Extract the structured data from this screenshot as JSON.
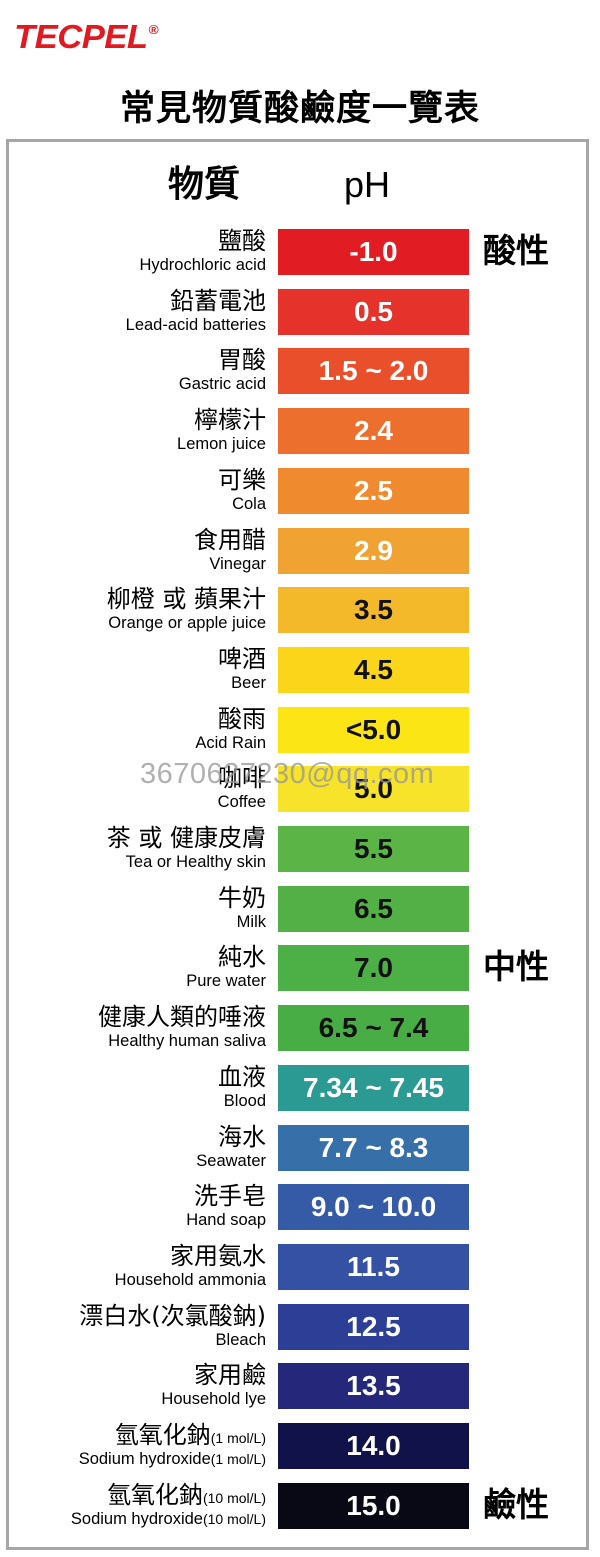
{
  "brand": {
    "name": "TECPEL",
    "reg": "®",
    "color": "#e11a22"
  },
  "title": "常見物質酸鹼度一覽表",
  "headers": {
    "substance": "物質",
    "ph": "pH"
  },
  "side_labels": {
    "acidic": "酸性",
    "neutral": "中性",
    "alkaline": "鹼性"
  },
  "watermark": "3670627230@qq.com",
  "rows": [
    {
      "zh": "鹽酸",
      "en": "Hydrochloric acid",
      "ph": "-1.0",
      "color": "#e21c23",
      "text_color": "#ffffff"
    },
    {
      "zh": "鉛蓄電池",
      "en": "Lead-acid batteries",
      "ph": "0.5",
      "color": "#e5322a",
      "text_color": "#ffffff"
    },
    {
      "zh": "胃酸",
      "en": "Gastric acid",
      "ph": "1.5 ~ 2.0",
      "color": "#ea4f2b",
      "text_color": "#ffffff"
    },
    {
      "zh": "檸檬汁",
      "en": "Lemon juice",
      "ph": "2.4",
      "color": "#ed6f2d",
      "text_color": "#ffffff"
    },
    {
      "zh": "可樂",
      "en": "Cola",
      "ph": "2.5",
      "color": "#ef8a2f",
      "text_color": "#ffffff"
    },
    {
      "zh": "食用醋",
      "en": "Vinegar",
      "ph": "2.9",
      "color": "#f0a233",
      "text_color": "#ffffff"
    },
    {
      "zh": "柳橙 或 蘋果汁",
      "en": "Orange or apple juice",
      "ph": "3.5",
      "color": "#f4b92b",
      "text_color": "#111111"
    },
    {
      "zh": "啤酒",
      "en": "Beer",
      "ph": "4.5",
      "color": "#fad51a",
      "text_color": "#111111"
    },
    {
      "zh": "酸雨",
      "en": "Acid Rain",
      "ph": "<5.0",
      "color": "#fbe514",
      "text_color": "#111111"
    },
    {
      "zh": "咖啡",
      "en": "Coffee",
      "ph": "5.0",
      "color": "#f6e32a",
      "text_color": "#111111"
    },
    {
      "zh": "茶 或 健康皮膚",
      "en": "Tea or Healthy skin",
      "ph": "5.5",
      "color": "#5bb446",
      "text_color": "#111111"
    },
    {
      "zh": "牛奶",
      "en": "Milk",
      "ph": "6.5",
      "color": "#53b046",
      "text_color": "#111111"
    },
    {
      "zh": "純水",
      "en": "Pure water",
      "ph": "7.0",
      "color": "#4db046",
      "text_color": "#111111"
    },
    {
      "zh": "健康人類的唾液",
      "en": "Healthy human saliva",
      "ph": "6.5 ~ 7.4",
      "color": "#49ad45",
      "text_color": "#111111"
    },
    {
      "zh": "血液",
      "en": "Blood",
      "ph": "7.34 ~ 7.45",
      "color": "#2a9a92",
      "text_color": "#ffffff"
    },
    {
      "zh": "海水",
      "en": "Seawater",
      "ph": "7.7 ~ 8.3",
      "color": "#3770a9",
      "text_color": "#ffffff"
    },
    {
      "zh": "洗手皂",
      "en": "Hand soap",
      "ph": "9.0 ~ 10.0",
      "color": "#355aa6",
      "text_color": "#ffffff"
    },
    {
      "zh": "家用氨水",
      "en": "Household ammonia",
      "ph": "11.5",
      "color": "#3551a3",
      "text_color": "#ffffff"
    },
    {
      "zh": "漂白水(次氯酸鈉)",
      "en": "Bleach",
      "ph": "12.5",
      "color": "#2d3e96",
      "text_color": "#ffffff"
    },
    {
      "zh": "家用鹼",
      "en": "Household lye",
      "ph": "13.5",
      "color": "#25287a",
      "text_color": "#ffffff"
    },
    {
      "zh": "氫氧化鈉",
      "zh_suffix": "(1 mol/L)",
      "en": "Sodium hydroxide",
      "en_suffix": "(1 mol/L)",
      "ph": "14.0",
      "color": "#12124a",
      "text_color": "#ffffff"
    },
    {
      "zh": "氫氧化鈉",
      "zh_suffix": "(10 mol/L)",
      "en": "Sodium hydroxide",
      "en_suffix": "(10 mol/L)",
      "ph": "15.0",
      "color": "#090916",
      "text_color": "#ffffff"
    }
  ]
}
